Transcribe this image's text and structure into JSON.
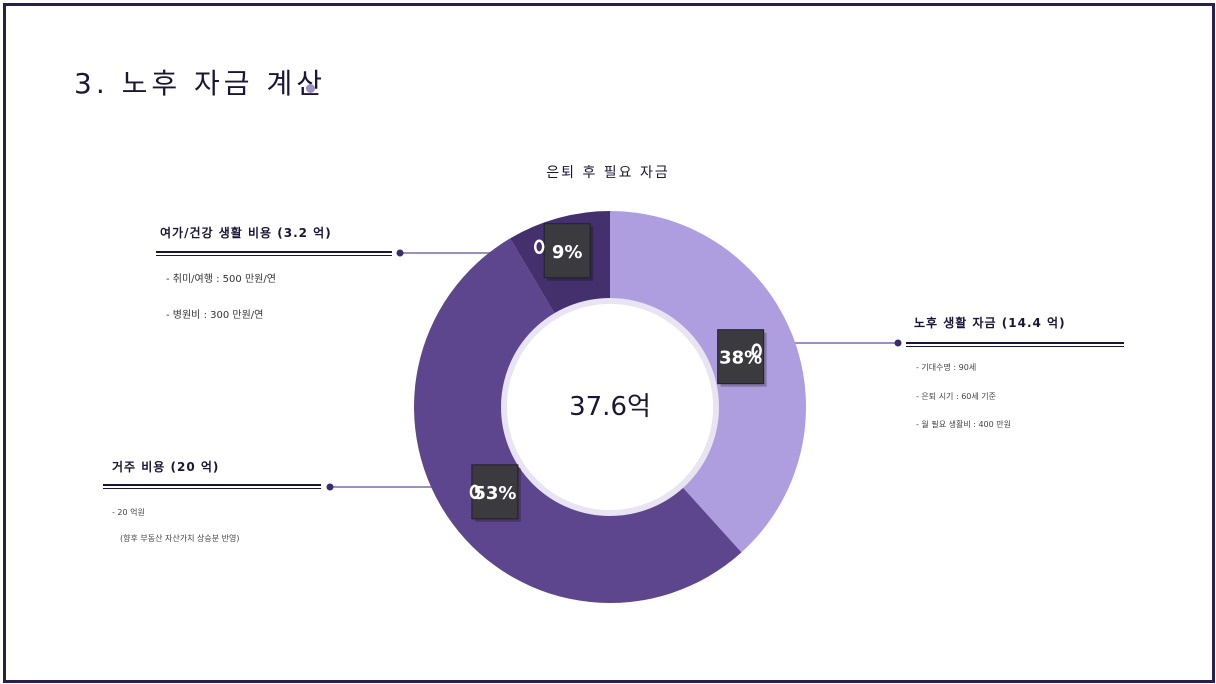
{
  "title": "3. 노후 자금 계산",
  "colors": {
    "frame": "#2a1f4e",
    "ink": "#1b1638",
    "accent_dot": "#9d92c0"
  },
  "chart_data": {
    "type": "pie",
    "title": "은퇴 후 필요 자금",
    "center_label": "37.6억",
    "slices": [
      {
        "label": "노후 생활 자금 (14.4 억)",
        "value": 14.4,
        "pct_label": "38%",
        "color": "#ae9ee0"
      },
      {
        "label": "거주 비용 (20 억)",
        "value": 20,
        "pct_label": "53%",
        "color": "#5e468f"
      },
      {
        "label": "여가/건강 생활 비용 (3.2 억)",
        "value": 3.2,
        "pct_label": "9%",
        "color": "#45306e"
      }
    ]
  },
  "callouts": {
    "retirement": {
      "heading": "노후 생활 자금 (14.4 억)",
      "items": [
        "- 기대수명 : 90세",
        "- 은퇴 시기 : 60세 기준",
        "- 월 필요 생활비 : 400 만원"
      ]
    },
    "housing": {
      "heading": "거주 비용 (20 억)",
      "items": [
        "- 20 억원",
        "(향후 부동산 자산가치 상승분 반영)"
      ]
    },
    "leisure": {
      "heading": "여가/건강 생활 비용 (3.2 억)",
      "items": [
        "- 취미/여행 : 500 만원/연",
        "- 병원비 : 300 만원/연"
      ]
    }
  }
}
